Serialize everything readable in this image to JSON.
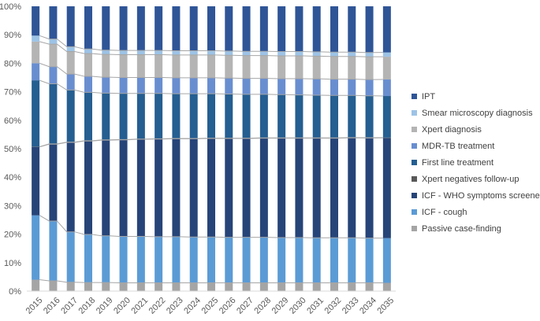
{
  "chart_data": {
    "type": "bar",
    "stacked": true,
    "percent": true,
    "categories": [
      "2015",
      "2016",
      "2017",
      "2018",
      "2019",
      "2020",
      "2021",
      "2022",
      "2023",
      "2024",
      "2025",
      "2026",
      "2027",
      "2028",
      "2029",
      "2030",
      "2031",
      "2032",
      "2033",
      "2034",
      "2035"
    ],
    "y_ticks": [
      "0%",
      "10%",
      "20%",
      "30%",
      "40%",
      "50%",
      "60%",
      "70%",
      "80%",
      "90%",
      "100%"
    ],
    "ylim": [
      0,
      100
    ],
    "grid": false,
    "legend_position": "right",
    "series": [
      {
        "name": "Passive case-finding",
        "color": "#a5a5a5",
        "values": [
          4.0,
          3.6,
          3.1,
          3.0,
          3.0,
          2.9,
          2.9,
          2.9,
          2.9,
          2.9,
          2.9,
          2.9,
          2.9,
          2.9,
          2.9,
          2.9,
          2.9,
          2.9,
          2.9,
          2.9,
          2.9
        ]
      },
      {
        "name": "ICF - cough",
        "color": "#5b9bd5",
        "values": [
          22.6,
          21.0,
          17.7,
          16.9,
          16.4,
          16.3,
          16.3,
          16.2,
          16.2,
          16.1,
          16.1,
          16.0,
          16.0,
          16.0,
          15.9,
          15.9,
          15.8,
          15.8,
          15.8,
          15.7,
          15.7
        ]
      },
      {
        "name": "ICF - WHO symptoms screener",
        "color": "#264478",
        "values": [
          24.0,
          27.0,
          31.4,
          32.8,
          33.6,
          33.9,
          34.1,
          34.3,
          34.4,
          34.5,
          34.6,
          34.7,
          34.7,
          34.8,
          34.9,
          34.9,
          35.0,
          35.0,
          35.1,
          35.1,
          35.2
        ]
      },
      {
        "name": "Xpert negatives follow-up",
        "color": "#595959",
        "values": [
          0.1,
          0.1,
          0.1,
          0.1,
          0.1,
          0.1,
          0.1,
          0.1,
          0.1,
          0.1,
          0.1,
          0.1,
          0.1,
          0.1,
          0.1,
          0.1,
          0.1,
          0.1,
          0.1,
          0.1,
          0.1
        ]
      },
      {
        "name": "First line treatment",
        "color": "#255e91",
        "values": [
          23.3,
          21.1,
          18.3,
          17.0,
          16.4,
          16.2,
          16.0,
          15.9,
          15.7,
          15.7,
          15.6,
          15.5,
          15.4,
          15.3,
          15.2,
          15.1,
          15.0,
          14.9,
          14.8,
          14.7,
          14.6
        ]
      },
      {
        "name": "MDR-TB treatment",
        "color": "#698ed0",
        "values": [
          6.0,
          6.0,
          5.6,
          5.6,
          5.6,
          5.6,
          5.6,
          5.6,
          5.6,
          5.6,
          5.6,
          5.6,
          5.6,
          5.6,
          5.6,
          5.7,
          5.7,
          5.7,
          5.7,
          5.7,
          5.8
        ]
      },
      {
        "name": "Xpert diagnosis",
        "color": "#b4b4b4",
        "values": [
          7.6,
          7.9,
          7.9,
          8.0,
          8.0,
          8.0,
          8.0,
          8.0,
          8.0,
          8.0,
          8.0,
          8.0,
          8.0,
          8.0,
          8.0,
          8.0,
          8.0,
          8.0,
          8.0,
          8.0,
          8.0
        ]
      },
      {
        "name": "Smear microscopy diagnosis",
        "color": "#9dc3e6",
        "values": [
          2.1,
          1.8,
          1.7,
          1.6,
          1.5,
          1.5,
          1.5,
          1.5,
          1.5,
          1.5,
          1.5,
          1.5,
          1.5,
          1.5,
          1.5,
          1.5,
          1.5,
          1.5,
          1.5,
          1.5,
          1.5
        ]
      },
      {
        "name": "IPT",
        "color": "#2f5597",
        "values": [
          10.3,
          11.5,
          14.2,
          15.0,
          15.4,
          15.5,
          15.5,
          15.5,
          15.6,
          15.6,
          15.6,
          15.7,
          15.8,
          15.8,
          15.9,
          15.9,
          16.0,
          16.1,
          16.1,
          16.2,
          16.2
        ]
      }
    ],
    "legend_order": [
      "IPT",
      "Smear microscopy diagnosis",
      "Xpert diagnosis",
      "MDR-TB treatment",
      "First line treatment",
      "Xpert negatives follow-up",
      "ICF - WHO symptoms screener",
      "ICF - cough",
      "Passive case-finding"
    ]
  }
}
